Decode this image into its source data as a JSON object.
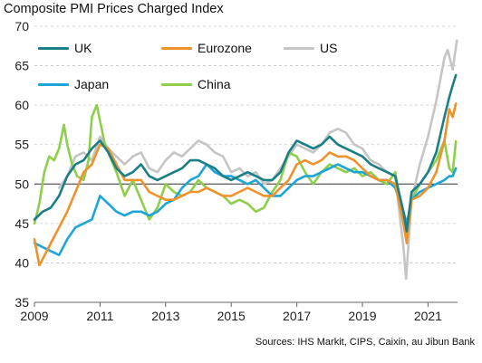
{
  "title": "Composite PMI Prices Charged Index",
  "source": "Sources: IHS Markit, CIPS, Caixin, au Jibun Bank",
  "chart_data": {
    "type": "line",
    "title": "Composite PMI Prices Charged Index",
    "xlabel": "",
    "ylabel": "",
    "xlim": [
      2009.0,
      2021.9
    ],
    "ylim": [
      35,
      70
    ],
    "yticks": [
      35,
      40,
      45,
      50,
      55,
      60,
      65,
      70
    ],
    "xticks": [
      2009,
      2011,
      2013,
      2015,
      2017,
      2019,
      2021
    ],
    "xtick_labels": [
      "2009",
      "2011",
      "2013",
      "2015",
      "2017",
      "2019",
      "2021"
    ],
    "reference_line": 50,
    "grid": "horizontal dashed",
    "legend_position": "top-left, inside plot",
    "series": [
      {
        "name": "UK",
        "color": "#1a7f86",
        "x": [
          2009.0,
          2009.25,
          2009.5,
          2009.75,
          2010.0,
          2010.25,
          2010.5,
          2010.75,
          2011.0,
          2011.25,
          2011.5,
          2011.75,
          2012.0,
          2012.25,
          2012.5,
          2012.75,
          2013.0,
          2013.25,
          2013.5,
          2013.75,
          2014.0,
          2014.25,
          2014.5,
          2014.75,
          2015.0,
          2015.25,
          2015.5,
          2015.75,
          2016.0,
          2016.25,
          2016.5,
          2016.75,
          2017.0,
          2017.25,
          2017.5,
          2017.75,
          2018.0,
          2018.25,
          2018.5,
          2018.75,
          2019.0,
          2019.25,
          2019.5,
          2019.75,
          2020.0,
          2020.25,
          2020.35,
          2020.5,
          2020.75,
          2021.0,
          2021.25,
          2021.5,
          2021.65,
          2021.75,
          2021.85
        ],
        "y": [
          45.5,
          46.5,
          47.0,
          48.5,
          51.0,
          52.5,
          53.0,
          54.5,
          55.5,
          54.0,
          52.0,
          51.0,
          51.5,
          52.5,
          51.0,
          50.5,
          51.0,
          51.5,
          52.0,
          53.0,
          53.0,
          52.5,
          52.0,
          51.0,
          50.5,
          51.0,
          51.5,
          51.0,
          50.5,
          50.5,
          51.5,
          54.0,
          55.5,
          55.0,
          54.5,
          55.0,
          56.0,
          55.0,
          54.5,
          54.0,
          53.5,
          52.5,
          52.0,
          51.5,
          51.0,
          46.5,
          44.0,
          49.0,
          50.0,
          51.5,
          54.0,
          58.5,
          61.0,
          62.5,
          63.8
        ]
      },
      {
        "name": "Eurozone",
        "color": "#f0922b",
        "x": [
          2009.0,
          2009.15,
          2009.25,
          2009.5,
          2009.75,
          2010.0,
          2010.25,
          2010.5,
          2010.75,
          2011.0,
          2011.25,
          2011.5,
          2011.75,
          2012.0,
          2012.25,
          2012.5,
          2012.75,
          2013.0,
          2013.25,
          2013.5,
          2013.75,
          2014.0,
          2014.25,
          2014.5,
          2014.75,
          2015.0,
          2015.25,
          2015.5,
          2015.75,
          2016.0,
          2016.25,
          2016.5,
          2016.75,
          2017.0,
          2017.25,
          2017.5,
          2017.75,
          2018.0,
          2018.25,
          2018.5,
          2018.75,
          2019.0,
          2019.25,
          2019.5,
          2019.75,
          2020.0,
          2020.25,
          2020.35,
          2020.5,
          2020.75,
          2021.0,
          2021.25,
          2021.5,
          2021.65,
          2021.75,
          2021.85
        ],
        "y": [
          43.0,
          39.7,
          40.5,
          42.5,
          44.5,
          46.5,
          49.0,
          51.5,
          52.5,
          55.0,
          54.5,
          52.5,
          50.5,
          50.5,
          50.5,
          49.0,
          48.5,
          48.0,
          48.0,
          48.5,
          49.0,
          49.0,
          49.5,
          49.0,
          48.5,
          48.5,
          49.0,
          49.5,
          49.0,
          48.5,
          48.5,
          49.5,
          50.5,
          52.5,
          53.0,
          52.5,
          53.0,
          54.0,
          53.5,
          53.5,
          53.0,
          52.0,
          51.0,
          50.5,
          50.5,
          50.0,
          45.0,
          42.5,
          48.0,
          48.5,
          49.5,
          51.5,
          55.5,
          59.5,
          58.5,
          60.2
        ]
      },
      {
        "name": "US",
        "color": "#c5c5c5",
        "x": [
          2009.75,
          2010.0,
          2010.25,
          2010.5,
          2010.75,
          2011.0,
          2011.25,
          2011.5,
          2011.75,
          2012.0,
          2012.25,
          2012.5,
          2012.75,
          2013.0,
          2013.25,
          2013.5,
          2013.75,
          2014.0,
          2014.25,
          2014.5,
          2014.75,
          2015.0,
          2015.25,
          2015.5,
          2015.75,
          2016.0,
          2016.25,
          2016.5,
          2016.75,
          2017.0,
          2017.25,
          2017.5,
          2017.75,
          2018.0,
          2018.25,
          2018.5,
          2018.75,
          2019.0,
          2019.25,
          2019.5,
          2019.75,
          2020.0,
          2020.25,
          2020.33,
          2020.5,
          2020.75,
          2021.0,
          2021.25,
          2021.5,
          2021.6,
          2021.75,
          2021.88
        ],
        "y": [
          49.5,
          51.0,
          53.5,
          54.0,
          53.0,
          56.0,
          54.5,
          53.5,
          52.5,
          53.5,
          54.0,
          52.0,
          51.5,
          53.0,
          54.0,
          53.5,
          54.5,
          55.5,
          55.0,
          54.0,
          53.5,
          51.5,
          52.0,
          51.0,
          51.5,
          50.0,
          50.5,
          52.0,
          53.5,
          55.0,
          54.5,
          54.0,
          55.0,
          56.5,
          57.0,
          56.5,
          55.0,
          54.5,
          53.0,
          52.5,
          51.5,
          51.0,
          42.0,
          38.0,
          48.0,
          52.5,
          56.0,
          60.5,
          66.0,
          67.0,
          64.5,
          68.2
        ]
      },
      {
        "name": "Japan",
        "color": "#1da5d8",
        "x": [
          2009.0,
          2009.25,
          2009.5,
          2009.75,
          2010.0,
          2010.25,
          2010.5,
          2010.75,
          2011.0,
          2011.25,
          2011.5,
          2011.75,
          2012.0,
          2012.25,
          2012.5,
          2012.75,
          2013.0,
          2013.25,
          2013.5,
          2013.75,
          2014.0,
          2014.25,
          2014.5,
          2014.75,
          2015.0,
          2015.25,
          2015.5,
          2015.75,
          2016.0,
          2016.25,
          2016.5,
          2016.75,
          2017.0,
          2017.25,
          2017.5,
          2017.75,
          2018.0,
          2018.25,
          2018.5,
          2018.75,
          2019.0,
          2019.25,
          2019.5,
          2019.75,
          2020.0,
          2020.25,
          2020.35,
          2020.5,
          2020.75,
          2021.0,
          2021.25,
          2021.5,
          2021.65,
          2021.75,
          2021.85
        ],
        "y": [
          42.5,
          42.0,
          41.5,
          41.0,
          43.0,
          44.5,
          45.0,
          45.5,
          48.5,
          47.5,
          46.5,
          46.0,
          46.5,
          46.5,
          46.0,
          46.5,
          47.5,
          48.0,
          49.5,
          50.5,
          51.0,
          52.5,
          51.5,
          51.0,
          51.0,
          50.5,
          50.0,
          50.5,
          49.5,
          48.5,
          48.5,
          49.5,
          50.5,
          51.0,
          51.0,
          51.5,
          52.0,
          52.5,
          52.0,
          51.5,
          51.5,
          51.0,
          50.5,
          50.5,
          49.5,
          46.5,
          45.0,
          48.0,
          49.0,
          49.5,
          50.0,
          50.5,
          51.0,
          51.0,
          52.0
        ]
      },
      {
        "name": "China",
        "color": "#8dcf4a",
        "x": [
          2009.0,
          2009.15,
          2009.3,
          2009.45,
          2009.6,
          2009.75,
          2009.9,
          2010.0,
          2010.15,
          2010.3,
          2010.5,
          2010.65,
          2010.75,
          2010.9,
          2011.0,
          2011.15,
          2011.3,
          2011.5,
          2011.75,
          2012.0,
          2012.25,
          2012.5,
          2012.75,
          2013.0,
          2013.25,
          2013.5,
          2013.75,
          2014.0,
          2014.25,
          2014.5,
          2014.75,
          2015.0,
          2015.25,
          2015.5,
          2015.75,
          2016.0,
          2016.25,
          2016.5,
          2016.75,
          2017.0,
          2017.25,
          2017.5,
          2017.75,
          2018.0,
          2018.25,
          2018.5,
          2018.75,
          2019.0,
          2019.25,
          2019.5,
          2019.75,
          2020.0,
          2020.25,
          2020.35,
          2020.5,
          2020.75,
          2021.0,
          2021.25,
          2021.5,
          2021.65,
          2021.75,
          2021.85
        ],
        "y": [
          45.0,
          47.5,
          51.5,
          53.5,
          53.0,
          54.5,
          57.5,
          55.0,
          52.5,
          51.0,
          50.5,
          53.0,
          58.5,
          60.0,
          58.0,
          55.0,
          53.5,
          51.5,
          48.5,
          50.5,
          48.0,
          45.5,
          47.0,
          50.0,
          49.0,
          48.5,
          49.0,
          50.5,
          49.5,
          49.0,
          48.5,
          47.5,
          48.0,
          47.5,
          46.5,
          47.0,
          49.0,
          50.5,
          54.0,
          53.5,
          51.5,
          50.0,
          51.5,
          52.5,
          52.0,
          51.5,
          52.0,
          51.0,
          51.5,
          50.5,
          50.0,
          51.5,
          45.5,
          43.0,
          48.0,
          50.0,
          51.5,
          53.0,
          55.5,
          52.0,
          51.5,
          55.4
        ]
      }
    ]
  }
}
